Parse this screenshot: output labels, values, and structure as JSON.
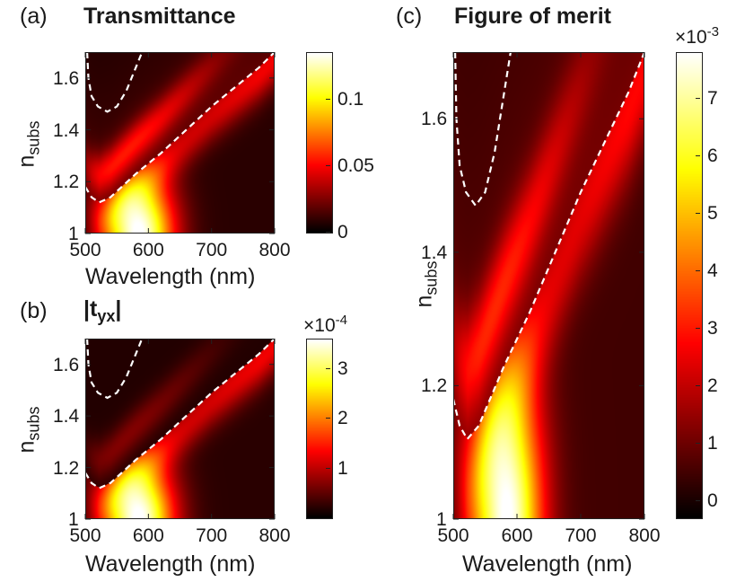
{
  "chart_data": [
    {
      "id": "a",
      "panel_label": "(a)",
      "title": "Transmittance",
      "type": "heatmap",
      "xlabel": "Wavelength (nm)",
      "ylabel_base": "n",
      "ylabel_sub": "subs",
      "xlim": [
        500,
        800
      ],
      "ylim": [
        1,
        1.7
      ],
      "xticks": [
        500,
        600,
        700,
        800
      ],
      "yticks": [
        1,
        1.2,
        1.4,
        1.6
      ],
      "colormap": "hot",
      "clim": [
        0,
        0.135
      ],
      "colorbar_ticks": [
        0,
        0.05,
        0.1
      ],
      "colorbar_exponent": "",
      "peak": {
        "wavelength": 580,
        "n_subs": 1.0,
        "value": 0.135
      },
      "contours": [
        {
          "points": [
            [
              503,
              1.7
            ],
            [
              505,
              1.6
            ],
            [
              510,
              1.53
            ],
            [
              520,
              1.49
            ],
            [
              535,
              1.47
            ],
            [
              550,
              1.49
            ],
            [
              565,
              1.55
            ],
            [
              590,
              1.7
            ]
          ]
        },
        {
          "points": [
            [
              500,
              1.18
            ],
            [
              510,
              1.14
            ],
            [
              522,
              1.12
            ],
            [
              540,
              1.14
            ],
            [
              580,
              1.23
            ],
            [
              620,
              1.31
            ],
            [
              660,
              1.4
            ],
            [
              700,
              1.49
            ],
            [
              740,
              1.57
            ],
            [
              775,
              1.64
            ],
            [
              800,
              1.7
            ]
          ]
        }
      ]
    },
    {
      "id": "b",
      "panel_label": "(b)",
      "title_base": "|t",
      "title_sub": "yx",
      "title_end": "|",
      "type": "heatmap",
      "xlabel": "Wavelength (nm)",
      "ylabel_base": "n",
      "ylabel_sub": "subs",
      "xlim": [
        500,
        800
      ],
      "ylim": [
        1,
        1.7
      ],
      "xticks": [
        500,
        600,
        700,
        800
      ],
      "yticks": [
        1,
        1.2,
        1.4,
        1.6
      ],
      "colormap": "hot",
      "clim": [
        0,
        3.6
      ],
      "colorbar_ticks": [
        1,
        2,
        3
      ],
      "colorbar_exponent_base": "×10",
      "colorbar_exponent_power": "-4",
      "peak": {
        "wavelength": 590,
        "n_subs": 1.0,
        "value": 3.6
      },
      "contours": [
        {
          "points": [
            [
              503,
              1.7
            ],
            [
              505,
              1.6
            ],
            [
              510,
              1.53
            ],
            [
              520,
              1.49
            ],
            [
              535,
              1.47
            ],
            [
              550,
              1.49
            ],
            [
              565,
              1.55
            ],
            [
              590,
              1.7
            ]
          ]
        },
        {
          "points": [
            [
              500,
              1.18
            ],
            [
              510,
              1.14
            ],
            [
              522,
              1.12
            ],
            [
              540,
              1.14
            ],
            [
              580,
              1.23
            ],
            [
              620,
              1.31
            ],
            [
              660,
              1.4
            ],
            [
              700,
              1.49
            ],
            [
              740,
              1.57
            ],
            [
              775,
              1.64
            ],
            [
              800,
              1.7
            ]
          ]
        }
      ]
    },
    {
      "id": "c",
      "panel_label": "(c)",
      "title": "Figure of merit",
      "type": "heatmap",
      "xlabel": "Wavelength (nm)",
      "ylabel_base": "n",
      "ylabel_sub": "subs",
      "xlim": [
        500,
        800
      ],
      "ylim": [
        1,
        1.7
      ],
      "xticks": [
        500,
        600,
        700,
        800
      ],
      "yticks": [
        1,
        1.2,
        1.4,
        1.6
      ],
      "colormap": "hot",
      "clim": [
        -0.3,
        7.8
      ],
      "colorbar_ticks": [
        0,
        1,
        2,
        3,
        4,
        5,
        6,
        7
      ],
      "colorbar_exponent_base": "×10",
      "colorbar_exponent_power": "-3",
      "peak": {
        "wavelength": 580,
        "n_subs": 1.0,
        "value": 7.8
      },
      "contours": [
        {
          "points": [
            [
              503,
              1.7
            ],
            [
              505,
              1.6
            ],
            [
              510,
              1.53
            ],
            [
              520,
              1.49
            ],
            [
              535,
              1.47
            ],
            [
              550,
              1.49
            ],
            [
              565,
              1.55
            ],
            [
              590,
              1.7
            ]
          ]
        },
        {
          "points": [
            [
              500,
              1.18
            ],
            [
              510,
              1.14
            ],
            [
              522,
              1.12
            ],
            [
              540,
              1.14
            ],
            [
              580,
              1.23
            ],
            [
              620,
              1.31
            ],
            [
              660,
              1.4
            ],
            [
              700,
              1.49
            ],
            [
              740,
              1.57
            ],
            [
              775,
              1.64
            ],
            [
              800,
              1.7
            ]
          ]
        }
      ]
    }
  ]
}
